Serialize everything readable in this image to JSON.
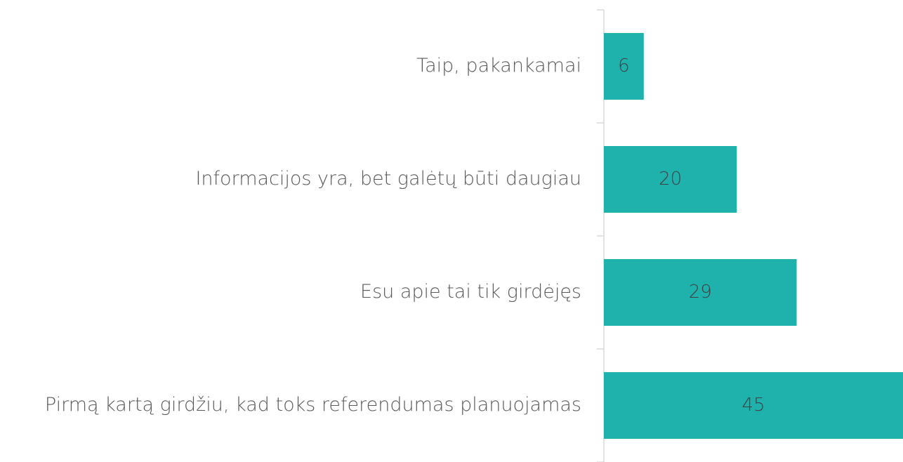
{
  "chart_data": {
    "type": "bar",
    "orientation": "horizontal",
    "categories": [
      "Taip, pakankamai",
      "Informacijos yra, bet galėtų būti daugiau",
      "Esu apie tai tik girdėjęs",
      "Pirmą kartą girdžiu, kad toks referendumas planuojamas"
    ],
    "values": [
      6,
      20,
      29,
      45
    ],
    "color": "#1fb2ad"
  }
}
